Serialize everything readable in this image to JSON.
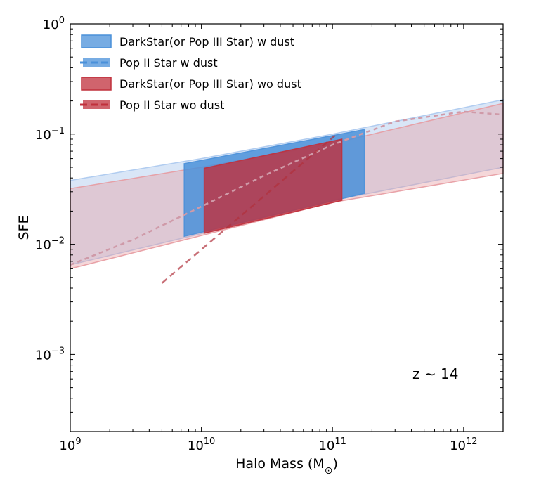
{
  "chart_data": {
    "type": "area",
    "xscale": "log",
    "yscale": "log",
    "xlim": [
      1000000000.0,
      2000000000000.0
    ],
    "ylim": [
      0.0002,
      1
    ],
    "xlabel": "Halo Mass (M",
    "xlabel_symbol": "⊙",
    "xlabel_close": ")",
    "ylabel": "SFE",
    "annotation": "z ∼ 14",
    "x_ticks": [
      {
        "base": "10",
        "exp": "9",
        "value": 1000000000.0
      },
      {
        "base": "10",
        "exp": "10",
        "value": 10000000000.0
      },
      {
        "base": "10",
        "exp": "11",
        "value": 100000000000.0
      },
      {
        "base": "10",
        "exp": "12",
        "value": 1000000000000.0
      }
    ],
    "y_ticks": [
      {
        "base": "10",
        "exp": "−3",
        "value": 0.001
      },
      {
        "base": "10",
        "exp": "−2",
        "value": 0.01
      },
      {
        "base": "10",
        "exp": "−1",
        "value": 0.1
      },
      {
        "base": "10",
        "exp": "0",
        "value": 1
      }
    ],
    "legend": [
      {
        "label": "DarkStar(or Pop III Star) w dust",
        "color": "#4a90d9",
        "style": "solid"
      },
      {
        "label": "Pop II Star w dust",
        "color": "#4a90d9",
        "style": "dashed"
      },
      {
        "label": "DarkStar(or Pop III Star) wo dust",
        "color": "#c0303c",
        "style": "solid"
      },
      {
        "label": "Pop II Star wo dust",
        "color": "#c0303c",
        "style": "dashed"
      }
    ],
    "series": [
      {
        "name": "Pop II Star w dust",
        "color": "#aac8ee",
        "fill_opacity": 0.45,
        "lower": [
          [
            1000000000.0,
            0.0065
          ],
          [
            10000000000.0,
            0.0125
          ],
          [
            100000000000.0,
            0.025
          ],
          [
            2000000000000.0,
            0.05
          ]
        ],
        "upper": [
          [
            1000000000.0,
            0.038
          ],
          [
            10000000000.0,
            0.06
          ],
          [
            100000000000.0,
            0.1
          ],
          [
            2000000000000.0,
            0.205
          ]
        ]
      },
      {
        "name": "Pop II Star wo dust",
        "color": "#e79aa0",
        "fill_opacity": 0.4,
        "lower": [
          [
            1000000000.0,
            0.006
          ],
          [
            10000000000.0,
            0.012
          ],
          [
            100000000000.0,
            0.024
          ],
          [
            2000000000000.0,
            0.044
          ]
        ],
        "upper": [
          [
            1000000000.0,
            0.032
          ],
          [
            10000000000.0,
            0.05
          ],
          [
            100000000000.0,
            0.082
          ],
          [
            2000000000000.0,
            0.19
          ]
        ]
      },
      {
        "name": "DarkStar(or Pop III Star) w dust",
        "color": "#4a90d9",
        "fill_opacity": 0.85,
        "lower": [
          [
            7400000000.0,
            0.0118
          ],
          [
            175000000000.0,
            0.029
          ]
        ],
        "upper": [
          [
            7400000000.0,
            0.054
          ],
          [
            175000000000.0,
            0.11
          ]
        ]
      },
      {
        "name": "DarkStar(or Pop III Star) wo dust",
        "color": "#c0303c",
        "fill_opacity": 0.8,
        "lower": [
          [
            10500000000.0,
            0.0126
          ],
          [
            118000000000.0,
            0.025
          ]
        ],
        "upper": [
          [
            10500000000.0,
            0.049
          ],
          [
            118000000000.0,
            0.09
          ]
        ]
      }
    ],
    "dashed_curve": {
      "color": "#cf9aa8",
      "points": [
        [
          1000000000.0,
          0.0065
        ],
        [
          3000000000.0,
          0.011
        ],
        [
          10000000000.0,
          0.022
        ],
        [
          30000000000.0,
          0.042
        ],
        [
          100000000000.0,
          0.08
        ],
        [
          300000000000.0,
          0.13
        ],
        [
          1000000000000.0,
          0.16
        ],
        [
          2000000000000.0,
          0.15
        ]
      ]
    }
  }
}
